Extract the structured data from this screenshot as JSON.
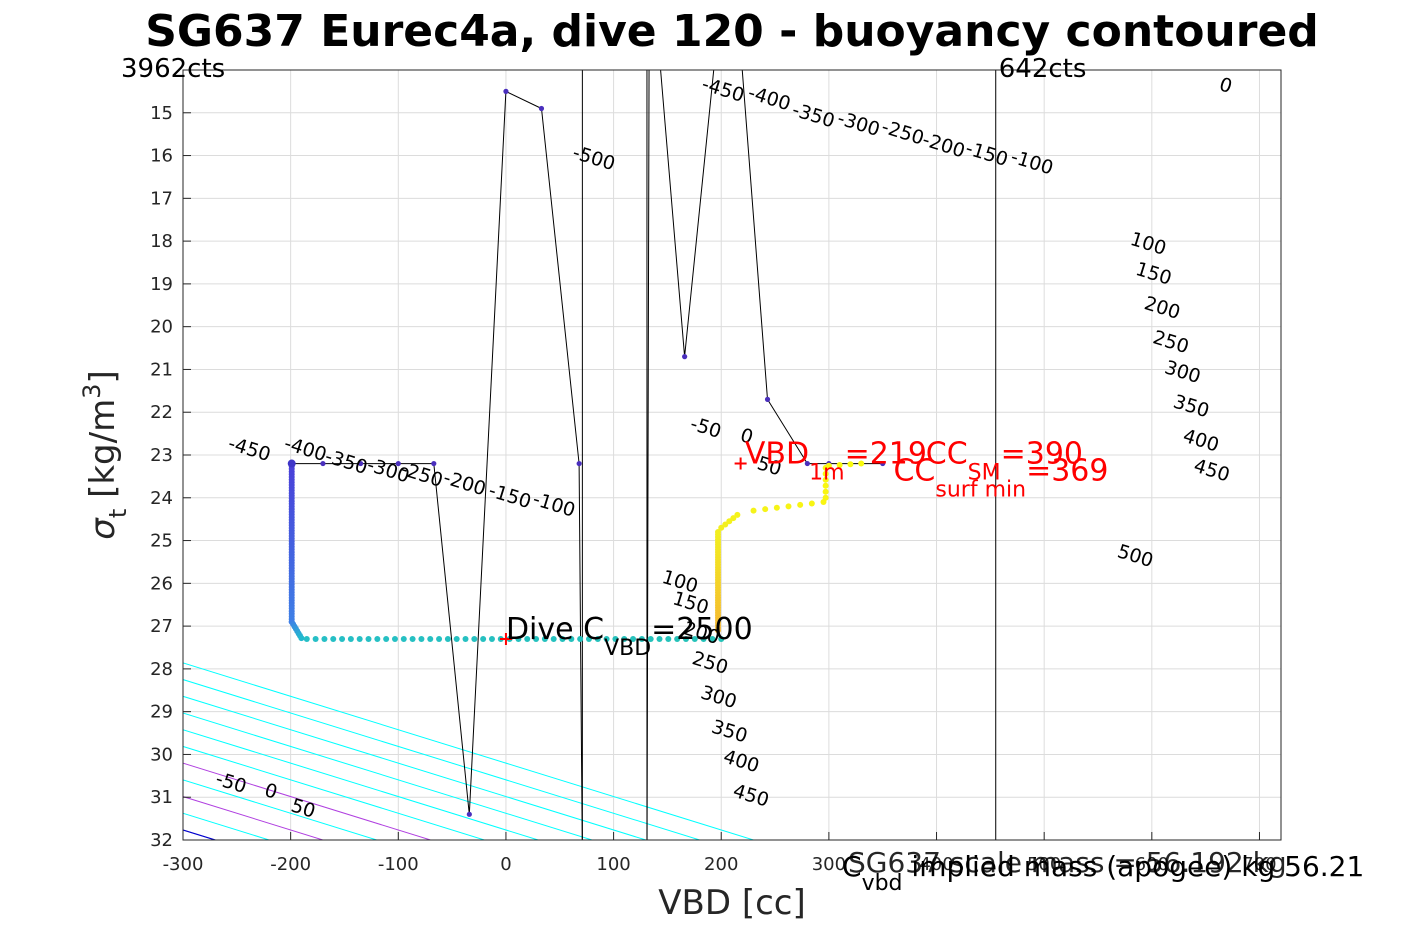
{
  "chart_data": {
    "type": "scatter",
    "title": "SG637 Eurec4a, dive 120 - buoyancy contoured",
    "xlabel": "VBD [cc]",
    "ylabel": "σ_t [kg/m^3]",
    "xlim": [
      -300,
      720
    ],
    "ylim": [
      14,
      32
    ],
    "y_reversed": true,
    "grid": true,
    "xticks": [
      -300,
      -200,
      -100,
      0,
      100,
      200,
      300,
      400,
      500,
      600,
      700
    ],
    "yticks": [
      15,
      16,
      17,
      18,
      19,
      20,
      21,
      22,
      23,
      24,
      25,
      26,
      27,
      28,
      29,
      30,
      31,
      32
    ],
    "xtick_labels": [
      "-300",
      "-200",
      "-100",
      "0",
      "100",
      "200",
      "300",
      "400",
      "500",
      "600",
      "700"
    ],
    "ytick_labels": [
      "15",
      "16",
      "17",
      "18",
      "19",
      "20",
      "21",
      "22",
      "23",
      "24",
      "25",
      "26",
      "27",
      "28",
      "29",
      "30",
      "31",
      "32"
    ],
    "buoyancy_contours": {
      "slope_cc_per_sigma": 128,
      "vbd_at_sigma32_for_zero": -270,
      "levels": [
        -500,
        -450,
        -400,
        -350,
        -300,
        -250,
        -200,
        -150,
        -100,
        -50,
        0,
        50,
        100,
        150,
        200,
        250,
        300,
        350,
        400,
        450,
        500
      ],
      "colors": {
        "negative": "#00ffff",
        "positive": "#00ffff",
        "zero": "#0000cd",
        "highlight": "#b040e0"
      },
      "highlight_levels": [
        100,
        200
      ],
      "labels": [
        {
          "text": "-450",
          "x": -240,
          "y": 23.0
        },
        {
          "text": "-400",
          "x": -188,
          "y": 23.0
        },
        {
          "text": "-350",
          "x": -150,
          "y": 23.3
        },
        {
          "text": "-300",
          "x": -111,
          "y": 23.5
        },
        {
          "text": "-250",
          "x": -80,
          "y": 23.6
        },
        {
          "text": "-200",
          "x": -40,
          "y": 23.8
        },
        {
          "text": "-150",
          "x": 2,
          "y": 24.1
        },
        {
          "text": "-100",
          "x": 43,
          "y": 24.3
        },
        {
          "text": "-50",
          "x": -257,
          "y": 30.8
        },
        {
          "text": "0",
          "x": -220,
          "y": 31.0
        },
        {
          "text": "50",
          "x": -190,
          "y": 31.4
        },
        {
          "text": "-500",
          "x": 80,
          "y": 16.2
        },
        {
          "text": "-450",
          "x": 200,
          "y": 14.6
        },
        {
          "text": "-400",
          "x": 243,
          "y": 14.8
        },
        {
          "text": "-350",
          "x": 284,
          "y": 15.2
        },
        {
          "text": "-300",
          "x": 326,
          "y": 15.4
        },
        {
          "text": "-250",
          "x": 367,
          "y": 15.6
        },
        {
          "text": "-200",
          "x": 405,
          "y": 15.9
        },
        {
          "text": "-150",
          "x": 445,
          "y": 16.1
        },
        {
          "text": "-100",
          "x": 487,
          "y": 16.3
        },
        {
          "text": "0",
          "x": 667,
          "y": 14.5
        },
        {
          "text": "-50",
          "x": 184,
          "y": 22.5
        },
        {
          "text": "0",
          "x": 222,
          "y": 22.7
        },
        {
          "text": "50",
          "x": 243,
          "y": 23.4
        },
        {
          "text": "100",
          "x": 160,
          "y": 26.1
        },
        {
          "text": "150",
          "x": 170,
          "y": 26.6
        },
        {
          "text": "200",
          "x": 180,
          "y": 27.3
        },
        {
          "text": "250",
          "x": 188,
          "y": 28.0
        },
        {
          "text": "300",
          "x": 196,
          "y": 28.8
        },
        {
          "text": "350",
          "x": 206,
          "y": 29.6
        },
        {
          "text": "400",
          "x": 217,
          "y": 30.3
        },
        {
          "text": "450",
          "x": 226,
          "y": 31.1
        },
        {
          "text": "100",
          "x": 595,
          "y": 18.2
        },
        {
          "text": "150",
          "x": 600,
          "y": 18.9
        },
        {
          "text": "200",
          "x": 608,
          "y": 19.7
        },
        {
          "text": "250",
          "x": 616,
          "y": 20.5
        },
        {
          "text": "300",
          "x": 627,
          "y": 21.2
        },
        {
          "text": "350",
          "x": 635,
          "y": 22.0
        },
        {
          "text": "400",
          "x": 644,
          "y": 22.8
        },
        {
          "text": "450",
          "x": 654,
          "y": 23.5
        },
        {
          "text": "500",
          "x": 583,
          "y": 25.5
        }
      ]
    },
    "vertical_lines": [
      {
        "x": 71,
        "color": "#000000"
      },
      {
        "x": 131,
        "color": "#000000"
      },
      {
        "x": 455,
        "color": "#000000"
      }
    ],
    "count_labels": [
      {
        "text": "3962cts",
        "at": "left"
      },
      {
        "text": "642cts",
        "x": 455
      }
    ],
    "descent_track": {
      "color": "#000000",
      "points": [
        {
          "x": -198,
          "y": 23.2
        },
        {
          "x": -170,
          "y": 23.2
        },
        {
          "x": -135,
          "y": 23.2
        },
        {
          "x": -100,
          "y": 23.2
        },
        {
          "x": -67,
          "y": 23.2
        },
        {
          "x": -34,
          "y": 31.4
        },
        {
          "x": 0,
          "y": 14.5
        },
        {
          "x": 33,
          "y": 14.9
        },
        {
          "x": 68,
          "y": 23.2
        },
        {
          "x": 71,
          "y": 32.5
        }
      ]
    },
    "ascent_track": {
      "color": "#000000",
      "points": [
        {
          "x": 131,
          "y": 32.5
        },
        {
          "x": 133,
          "y": 13.5
        },
        {
          "x": 142,
          "y": 13.5
        },
        {
          "x": 166,
          "y": 20.7
        },
        {
          "x": 195,
          "y": 13.5
        },
        {
          "x": 218,
          "y": 13.5
        },
        {
          "x": 243,
          "y": 21.7
        },
        {
          "x": 280,
          "y": 23.2
        },
        {
          "x": 300,
          "y": 23.2
        },
        {
          "x": 350,
          "y": 23.2
        }
      ]
    },
    "dive_scatter": {
      "segments": [
        {
          "from": {
            "x": -199,
            "y": 23.2
          },
          "to": {
            "x": -199,
            "y": 26.9
          },
          "n": 60,
          "color_from": "#4a3fd8",
          "color_to": "#3f7fe6"
        },
        {
          "from": {
            "x": -199,
            "y": 26.9
          },
          "to": {
            "x": -190,
            "y": 27.28
          },
          "n": 8,
          "color_from": "#3f7fe6",
          "color_to": "#23b8cf"
        },
        {
          "from": {
            "x": -185,
            "y": 27.3
          },
          "to": {
            "x": 200,
            "y": 27.3
          },
          "n": 48,
          "color_from": "#26bfc6",
          "color_to": "#25c2b8"
        }
      ],
      "points": [
        {
          "x": -199,
          "y": 23.2,
          "color": "#3f36c8"
        }
      ]
    },
    "climb_scatter": {
      "segments": [
        {
          "from": {
            "x": 197,
            "y": 27.1
          },
          "to": {
            "x": 197,
            "y": 24.8
          },
          "n": 40,
          "color_from": "#f5b732",
          "color_to": "#f2ee20"
        },
        {
          "from": {
            "x": 200,
            "y": 24.7
          },
          "to": {
            "x": 215,
            "y": 24.4
          },
          "n": 5,
          "color_from": "#f2ee20",
          "color_to": "#f5f31a"
        },
        {
          "from": {
            "x": 230,
            "y": 24.3
          },
          "to": {
            "x": 295,
            "y": 24.1
          },
          "n": 7,
          "color_from": "#f5f31a",
          "color_to": "#f9f511"
        },
        {
          "from": {
            "x": 297,
            "y": 24.0
          },
          "to": {
            "x": 297,
            "y": 23.3
          },
          "n": 6,
          "color_from": "#f9f511",
          "color_to": "#f9fb0e"
        },
        {
          "from": {
            "x": 300,
            "y": 23.25
          },
          "to": {
            "x": 330,
            "y": 23.2
          },
          "n": 4,
          "color_from": "#f9fb0e",
          "color_to": "#f9fb0e"
        }
      ]
    },
    "red_markers": [
      {
        "x": 0,
        "y": 27.3
      },
      {
        "x": 218,
        "y": 23.2
      }
    ],
    "annotations": [
      {
        "text": "Dive C",
        "sub": "VBD",
        "after": "=2500",
        "x": 0,
        "y": 27.3,
        "color": "#000000"
      },
      {
        "text": "VBD",
        "sub": "1m",
        "after": "=219",
        "x": 222,
        "y": 23.2,
        "color": "#ff0000"
      },
      {
        "text": "CC",
        "sub": "SM",
        "after": "=390",
        "x": 390,
        "y": 23.2,
        "color": "#ff0000"
      },
      {
        "text": "CC",
        "sub": "surf min",
        "after": "=369",
        "x": 360,
        "y": 23.6,
        "color": "#ff0000"
      }
    ],
    "footer_texts": [
      {
        "text": "C",
        "sub": "vbd",
        "after": " implied mass (apogee) kg 56.21"
      },
      {
        "text": "SG637 scale mass = 56.192 kg"
      }
    ]
  }
}
